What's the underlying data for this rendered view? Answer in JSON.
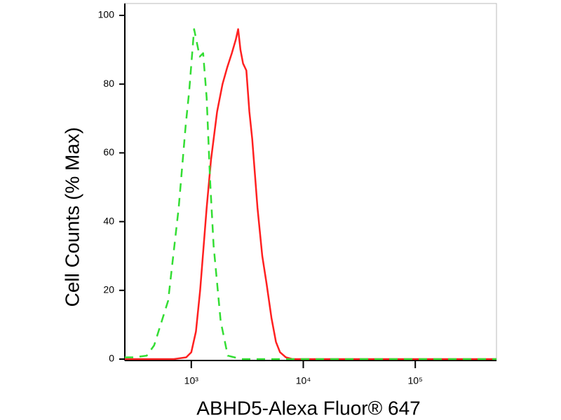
{
  "chart_data": {
    "type": "line",
    "xlabel": "ABHD5-Alexa Fluor® 647",
    "ylabel": "Cell Counts (% Max)",
    "xscale": "log",
    "xlim": [
      255,
      531000
    ],
    "ylim": [
      0,
      100
    ],
    "xticks": [
      {
        "value": 1000,
        "label": "10³"
      },
      {
        "value": 10000,
        "label": "10⁴"
      },
      {
        "value": 100000,
        "label": "10⁵"
      }
    ],
    "yticks": [
      0,
      20,
      40,
      60,
      80,
      100
    ],
    "series": [
      {
        "color": "#ff2020",
        "dash": "solid",
        "x": [
          255,
          700,
          900,
          1000,
          1100,
          1200,
          1372,
          1500,
          1700,
          1900,
          2100,
          2300,
          2500,
          2620,
          2750,
          2900,
          3100,
          3300,
          3500,
          3900,
          4300,
          4700,
          5200,
          5700,
          6200,
          7000,
          8000,
          531000
        ],
        "values": [
          0,
          0,
          0.5,
          2,
          8,
          20,
          44,
          58,
          72,
          80,
          85,
          89,
          93,
          96,
          90,
          86,
          84,
          72,
          64,
          44,
          30,
          22,
          12,
          5,
          2,
          0.5,
          0,
          0
        ]
      },
      {
        "color": "#33dd33",
        "dash": "dashed",
        "x": [
          255,
          300,
          400,
          466,
          622,
          772,
          891,
          958,
          1060,
          1189,
          1277,
          1372,
          1473,
          1582,
          1830,
          2117,
          2800,
          531000
        ],
        "values": [
          0.5,
          0.5,
          1,
          4,
          17,
          44,
          68,
          78,
          96,
          88,
          89,
          76,
          52,
          33,
          11,
          1,
          0,
          0
        ]
      }
    ]
  }
}
